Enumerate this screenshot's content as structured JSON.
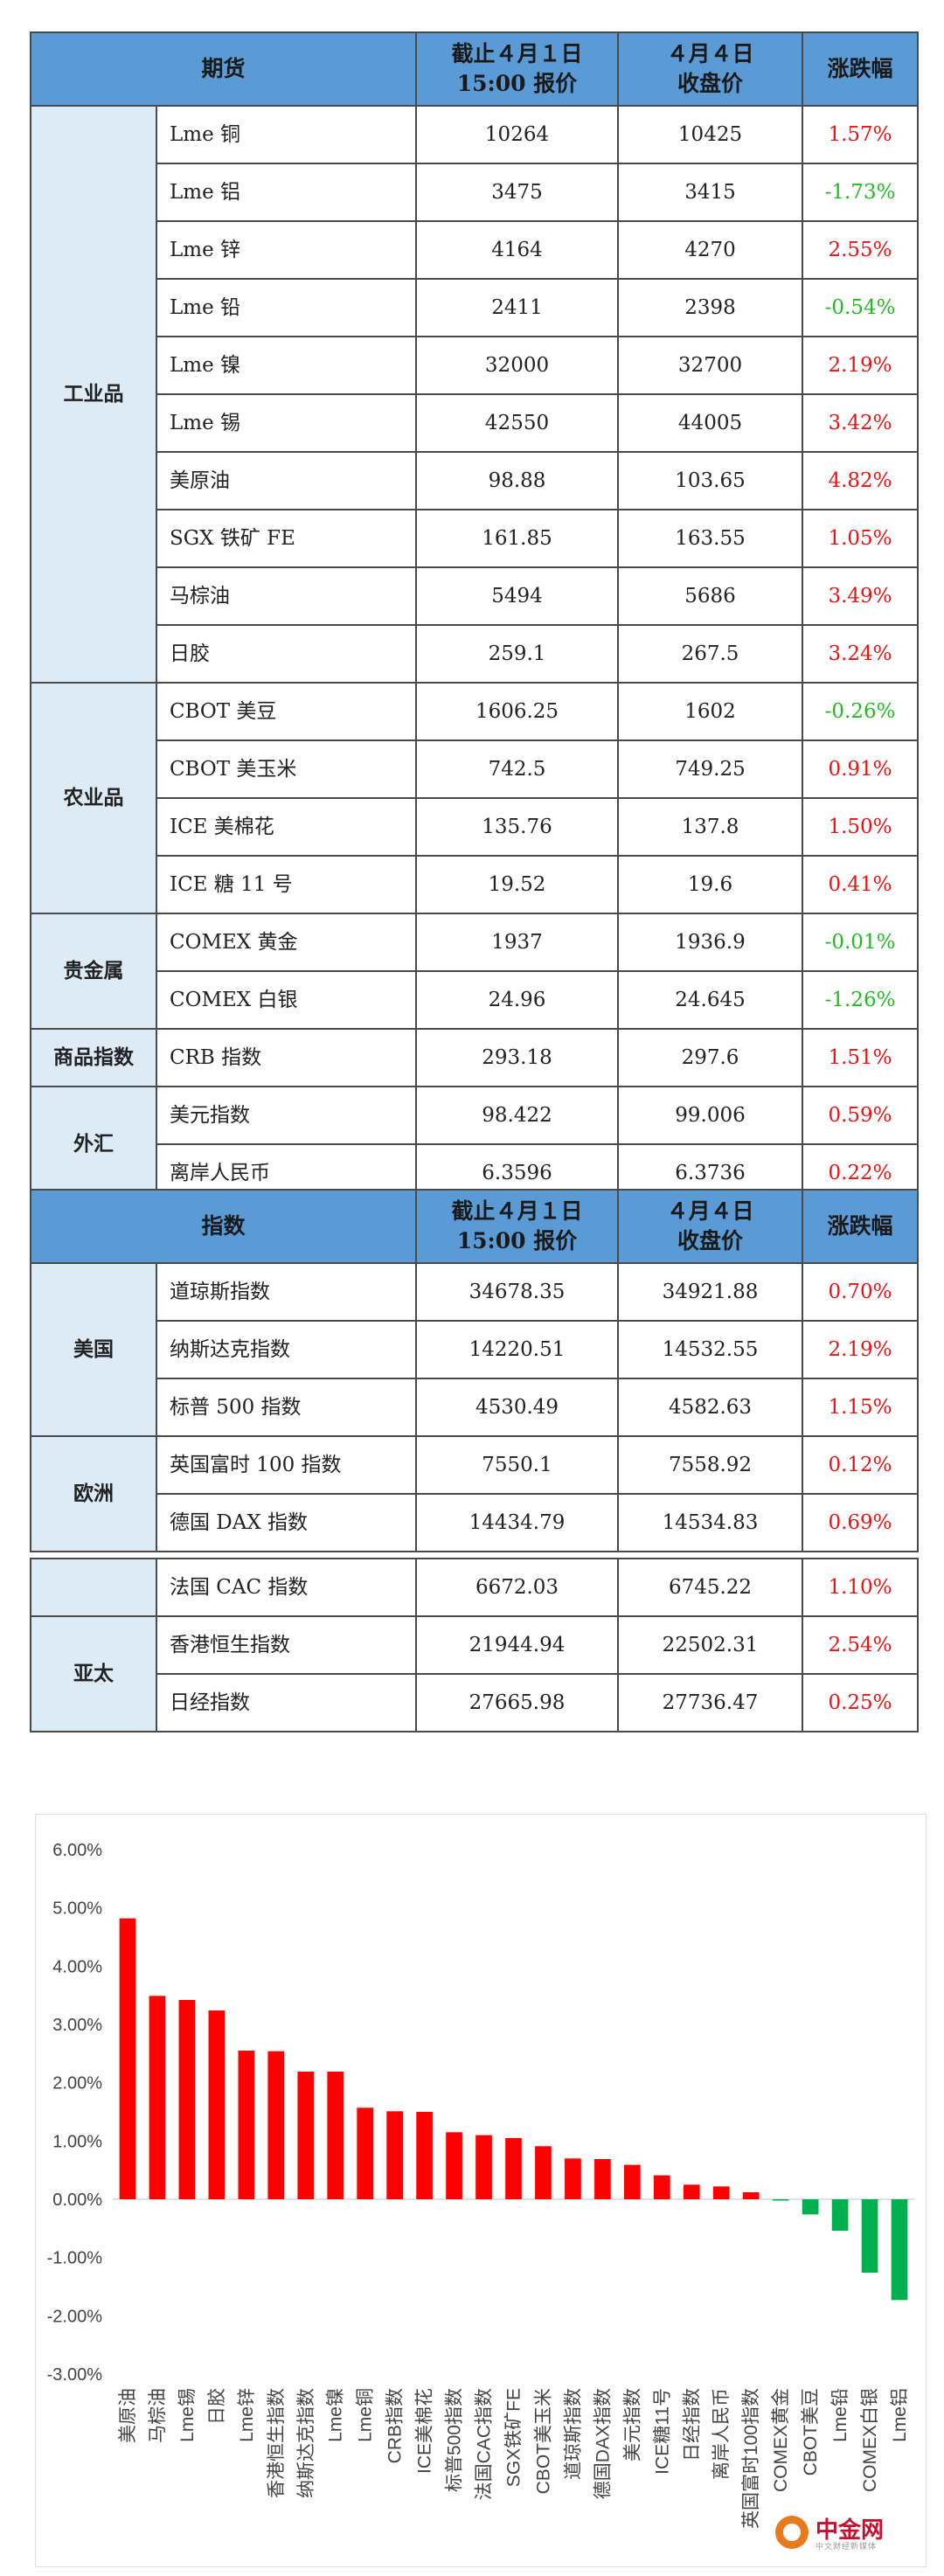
{
  "futures_table": {
    "header": {
      "col1": "期货",
      "col2_line1": "截止４月１日",
      "col2_line2": "15:00 报价",
      "col3_line1": "４月４日",
      "col3_line2": "收盘价",
      "col4": "涨跌幅"
    },
    "groups": [
      {
        "category": "工业品",
        "rows": [
          {
            "name": "Lme 铜",
            "prev": "10264",
            "close": "10425",
            "change": "1.57%",
            "dir": "up"
          },
          {
            "name": "Lme 铝",
            "prev": "3475",
            "close": "3415",
            "change": "-1.73%",
            "dir": "down"
          },
          {
            "name": "Lme 锌",
            "prev": "4164",
            "close": "4270",
            "change": "2.55%",
            "dir": "up"
          },
          {
            "name": "Lme 铅",
            "prev": "2411",
            "close": "2398",
            "change": "-0.54%",
            "dir": "down"
          },
          {
            "name": "Lme 镍",
            "prev": "32000",
            "close": "32700",
            "change": "2.19%",
            "dir": "up"
          },
          {
            "name": "Lme 锡",
            "prev": "42550",
            "close": "44005",
            "change": "3.42%",
            "dir": "up"
          },
          {
            "name": "美原油",
            "prev": "98.88",
            "close": "103.65",
            "change": "4.82%",
            "dir": "up"
          },
          {
            "name": "SGX 铁矿 FE",
            "prev": "161.85",
            "close": "163.55",
            "change": "1.05%",
            "dir": "up"
          },
          {
            "name": "马棕油",
            "prev": "5494",
            "close": "5686",
            "change": "3.49%",
            "dir": "up"
          },
          {
            "name": "日胶",
            "prev": "259.1",
            "close": "267.5",
            "change": "3.24%",
            "dir": "up"
          }
        ]
      },
      {
        "category": "农业品",
        "rows": [
          {
            "name": "CBOT 美豆",
            "prev": "1606.25",
            "close": "1602",
            "change": "-0.26%",
            "dir": "down"
          },
          {
            "name": "CBOT 美玉米",
            "prev": "742.5",
            "close": "749.25",
            "change": "0.91%",
            "dir": "up"
          },
          {
            "name": "ICE 美棉花",
            "prev": "135.76",
            "close": "137.8",
            "change": "1.50%",
            "dir": "up"
          },
          {
            "name": "ICE 糖 11 号",
            "prev": "19.52",
            "close": "19.6",
            "change": "0.41%",
            "dir": "up"
          }
        ]
      },
      {
        "category": "贵金属",
        "rows": [
          {
            "name": "COMEX 黄金",
            "prev": "1937",
            "close": "1936.9",
            "change": "-0.01%",
            "dir": "down"
          },
          {
            "name": "COMEX 白银",
            "prev": "24.96",
            "close": "24.645",
            "change": "-1.26%",
            "dir": "down"
          }
        ]
      },
      {
        "category": "商品指数",
        "rows": [
          {
            "name": "CRB 指数",
            "prev": "293.18",
            "close": "297.6",
            "change": "1.51%",
            "dir": "up"
          }
        ]
      },
      {
        "category": "外汇",
        "rows": [
          {
            "name": "美元指数",
            "prev": "98.422",
            "close": "99.006",
            "change": "0.59%",
            "dir": "up"
          },
          {
            "name": "离岸人民币",
            "prev": "6.3596",
            "close": "6.3736",
            "change": "0.22%",
            "dir": "up"
          }
        ]
      }
    ]
  },
  "index_table": {
    "header": {
      "col1": "指数",
      "col2_line1": "截止４月１日",
      "col2_line2": "15:00 报价",
      "col3_line1": "４月４日",
      "col3_line2": "收盘价",
      "col4": "涨跌幅"
    },
    "groups": [
      {
        "category": "美国",
        "rows": [
          {
            "name": "道琼斯指数",
            "prev": "34678.35",
            "close": "34921.88",
            "change": "0.70%",
            "dir": "up"
          },
          {
            "name": "纳斯达克指数",
            "prev": "14220.51",
            "close": "14532.55",
            "change": "2.19%",
            "dir": "up"
          },
          {
            "name": "标普 500 指数",
            "prev": "4530.49",
            "close": "4582.63",
            "change": "1.15%",
            "dir": "up"
          }
        ]
      },
      {
        "category": "欧洲",
        "rows": [
          {
            "name": "英国富时 100 指数",
            "prev": "7550.1",
            "close": "7558.92",
            "change": "0.12%",
            "dir": "up"
          },
          {
            "name": "德国 DAX 指数",
            "prev": "14434.79",
            "close": "14534.83",
            "change": "0.69%",
            "dir": "up"
          }
        ]
      }
    ]
  },
  "index_table2": {
    "groups": [
      {
        "category": "",
        "rows": [
          {
            "name": "法国 CAC 指数",
            "prev": "6672.03",
            "close": "6745.22",
            "change": "1.10%",
            "dir": "up"
          }
        ]
      },
      {
        "category": "亚太",
        "rows": [
          {
            "name": "香港恒生指数",
            "prev": "21944.94",
            "close": "22502.31",
            "change": "2.54%",
            "dir": "up"
          },
          {
            "name": "日经指数",
            "prev": "27665.98",
            "close": "27736.47",
            "change": "0.25%",
            "dir": "up"
          }
        ]
      }
    ]
  },
  "colors": {
    "up": "#ee1111",
    "down": "#22bb22",
    "header": "#5b9bd5",
    "category": "#ddebf7",
    "bar_up": "#ff0000",
    "bar_down": "#00b050"
  },
  "logo": {
    "name": "中金网",
    "sub": "中文财经新媒体"
  },
  "chart_data": {
    "type": "bar",
    "categories": [
      "美原油",
      "马棕油",
      "Lme锡",
      "日胶",
      "Lme锌",
      "香港恒生指数",
      "纳斯达克指数",
      "Lme镍",
      "Lme铜",
      "CRB指数",
      "ICE美棉花",
      "标普500指数",
      "法国CAC指数",
      "SGX铁矿FE",
      "CBOT美玉米",
      "道琼斯指数",
      "德国DAX指数",
      "美元指数",
      "ICE糖11号",
      "日经指数",
      "离岸人民币",
      "英国富时100指数",
      "COMEX黄金",
      "CBOT美豆",
      "Lme铅",
      "COMEX白银",
      "Lme铝"
    ],
    "values": [
      4.82,
      3.49,
      3.42,
      3.24,
      2.55,
      2.54,
      2.19,
      2.19,
      1.57,
      1.51,
      1.5,
      1.15,
      1.1,
      1.05,
      0.91,
      0.7,
      0.69,
      0.59,
      0.41,
      0.25,
      0.22,
      0.12,
      -0.01,
      -0.26,
      -0.54,
      -1.26,
      -1.73
    ],
    "ylim": [
      -3.0,
      6.0
    ],
    "yticks": [
      "6.00%",
      "5.00%",
      "4.00%",
      "3.00%",
      "2.00%",
      "1.00%",
      "0.00%",
      "-1.00%",
      "-2.00%",
      "-3.00%"
    ],
    "ytick_values": [
      6,
      5,
      4,
      3,
      2,
      1,
      0,
      -1,
      -2,
      -3
    ],
    "grid": false,
    "title": "",
    "xlabel": "",
    "ylabel": ""
  }
}
